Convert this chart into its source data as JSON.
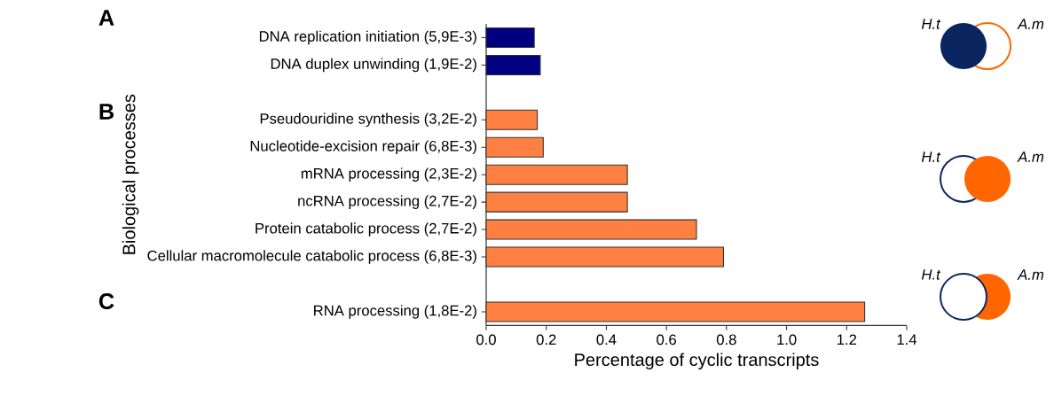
{
  "chart_data": {
    "type": "bar",
    "orientation": "horizontal",
    "xlabel": "Percentage of cyclic transcripts",
    "ylabel": "Biological processes",
    "categories": [
      "DNA replication initiation (5,9E-3)",
      "DNA duplex unwinding (1,9E-2)",
      null,
      "Pseudouridine synthesis (3,2E-2)",
      "Nucleotide-excision repair (6,8E-3)",
      "mRNA processing (2,3E-2)",
      "ncRNA processing (2,7E-2)",
      "Protein catabolic process (2,7E-2)",
      "Cellular macromolecule catabolic process (6,8E-3)",
      null,
      "RNA processing (1,8E-2)"
    ],
    "values": [
      0.16,
      0.18,
      null,
      0.17,
      0.19,
      0.47,
      0.47,
      0.7,
      0.79,
      null,
      1.26
    ],
    "colors": [
      "#000080",
      "#000080",
      null,
      "#ff8040",
      "#ff8040",
      "#ff8040",
      "#ff8040",
      "#ff8040",
      "#ff8040",
      null,
      "#ff8040"
    ],
    "xlim": [
      0,
      1.4
    ],
    "xticks": [
      {
        "value": 0,
        "label": "0.0"
      },
      0.2,
      0.4,
      0.6,
      0.8,
      {
        "value": 1,
        "label": "1.0"
      },
      1.2,
      1.4
    ],
    "annotations": [
      "A",
      "B",
      "C",
      "H.t",
      "A.m",
      "H.t",
      "A.m",
      "H.t",
      "A.m"
    ]
  }
}
